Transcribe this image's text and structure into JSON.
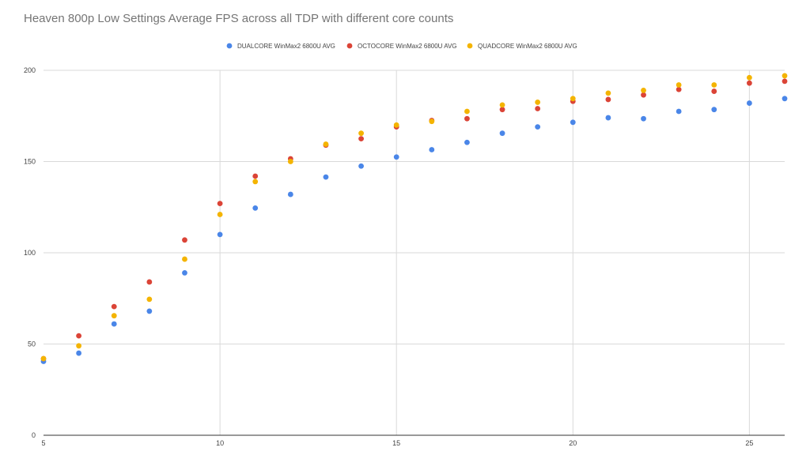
{
  "chart_data": {
    "type": "scatter",
    "title": "Heaven 800p Low Settings Average FPS across all TDP with different core counts",
    "xlabel": "",
    "ylabel": "",
    "xlim": [
      5,
      26
    ],
    "ylim": [
      0,
      200
    ],
    "x_ticks": [
      5,
      10,
      15,
      20,
      25
    ],
    "y_ticks": [
      0,
      50,
      100,
      150,
      200
    ],
    "grid": true,
    "legend_position": "top",
    "x": [
      5,
      6,
      7,
      8,
      9,
      10,
      11,
      12,
      13,
      14,
      15,
      16,
      17,
      18,
      19,
      20,
      21,
      22,
      23,
      24,
      25,
      26
    ],
    "series": [
      {
        "name": "DUALCORE WinMax2 6800U AVG",
        "color": "#4a86e8",
        "values": [
          40.5,
          45,
          61,
          68,
          89,
          110,
          124.5,
          132,
          141.5,
          147.5,
          152.5,
          156.5,
          160.5,
          165.5,
          169,
          171.5,
          174,
          173.5,
          177.5,
          178.5,
          182,
          184.5
        ]
      },
      {
        "name": "OCTOCORE WinMax2 6800U AVG",
        "color": "#db4437",
        "values": [
          42,
          54.5,
          70.5,
          84,
          107,
          127,
          142,
          151.5,
          159,
          162.5,
          169,
          172.5,
          173.5,
          178.5,
          179,
          183,
          184,
          186.5,
          189.5,
          188.5,
          193,
          194
        ]
      },
      {
        "name": "QUADCORE WinMax2 6800U AVG",
        "color": "#f4b400",
        "values": [
          42,
          49,
          65.5,
          74.5,
          96.5,
          121,
          139,
          150,
          159.5,
          165.5,
          170,
          172,
          177.5,
          181,
          182.5,
          184.5,
          187.5,
          189,
          192,
          192,
          196,
          197
        ]
      }
    ]
  }
}
